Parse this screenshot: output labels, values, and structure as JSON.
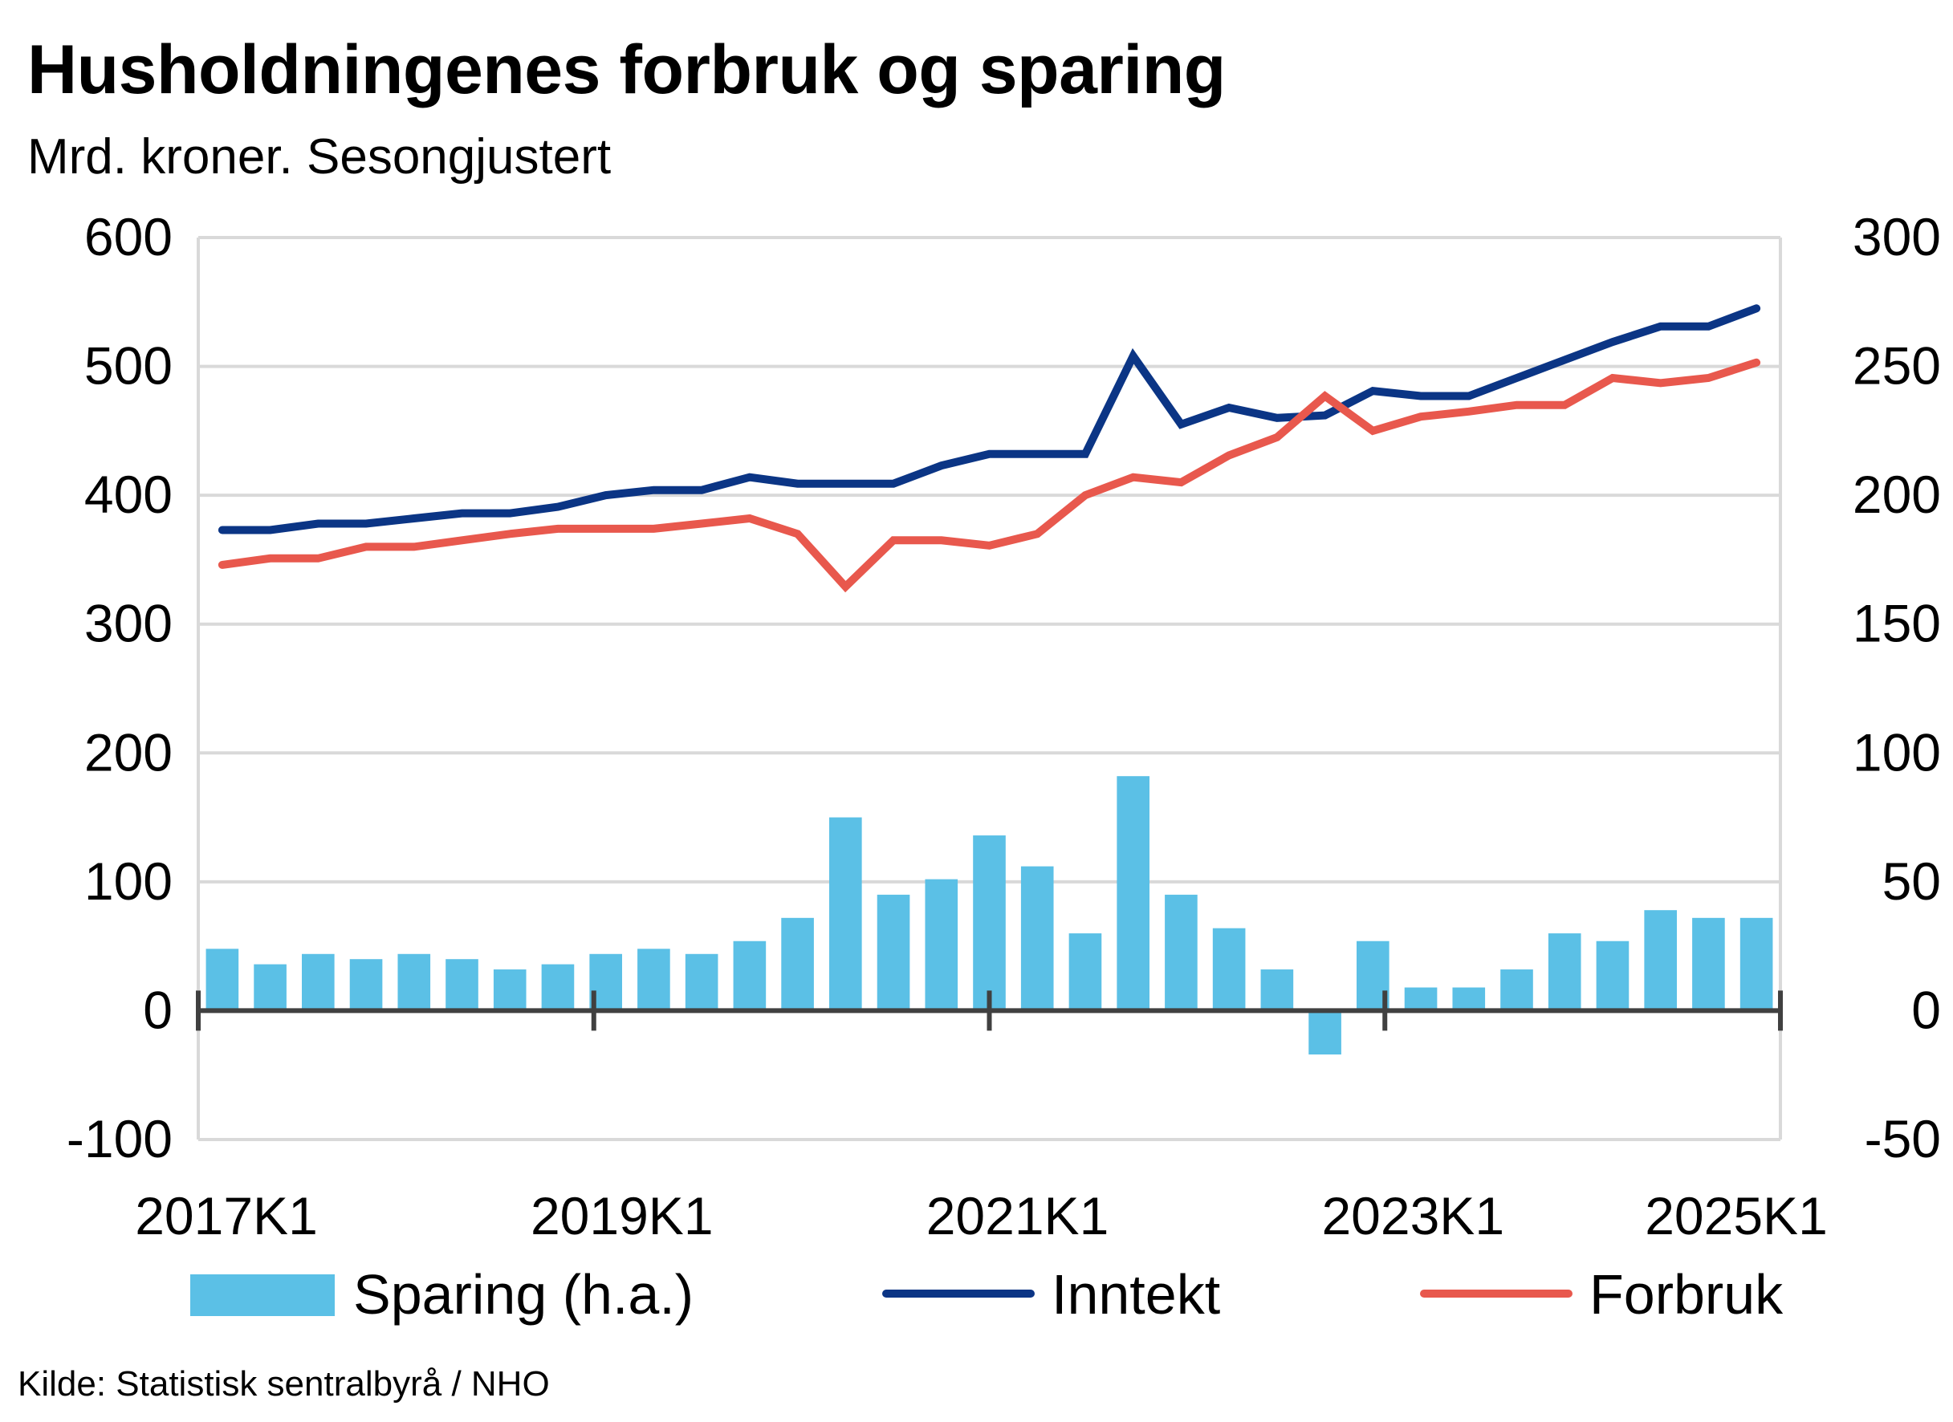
{
  "chart_data": {
    "type": "bar",
    "title": "Husholdningenes forbruk og sparing",
    "subtitle": "Mrd. kroner. Sesongjustert",
    "source": "Kilde: Statistisk sentralbyrå / NHO",
    "x": [
      "2017K1",
      "2017K2",
      "2017K3",
      "2017K4",
      "2018K1",
      "2018K2",
      "2018K3",
      "2018K4",
      "2019K1",
      "2019K2",
      "2019K3",
      "2019K4",
      "2020K1",
      "2020K2",
      "2020K3",
      "2020K4",
      "2021K1",
      "2021K2",
      "2021K3",
      "2021K4",
      "2022K1",
      "2022K2",
      "2022K3",
      "2022K4",
      "2023K1",
      "2023K2",
      "2023K3",
      "2023K4",
      "2024K1",
      "2024K2",
      "2024K3",
      "2024K4",
      "2025K1"
    ],
    "x_tick_labels": [
      "2017K1",
      "2019K1",
      "2021K1",
      "2023K1",
      "2025K1"
    ],
    "y_left": {
      "lim": [
        -100,
        600
      ],
      "ticks": [
        "-100",
        "0",
        "100",
        "200",
        "300",
        "400",
        "500",
        "600"
      ]
    },
    "y_right": {
      "lim": [
        -50,
        300
      ],
      "ticks": [
        "-50",
        "0",
        "50",
        "100",
        "150",
        "200",
        "250",
        "300"
      ]
    },
    "grid": true,
    "legend_position": "bottom",
    "series": [
      {
        "name": "Sparing (h.a.)",
        "type": "bar",
        "axis": "right",
        "color": "#5BC0E6",
        "values": [
          24,
          18,
          22,
          20,
          22,
          20,
          16,
          18,
          22,
          24,
          22,
          27,
          36,
          75,
          45,
          51,
          68,
          56,
          30,
          91,
          45,
          32,
          16,
          -17,
          27,
          9,
          9,
          16,
          30,
          27,
          39,
          36,
          36
        ]
      },
      {
        "name": "Inntekt",
        "type": "line",
        "axis": "left",
        "color": "#0B3585",
        "values": [
          373,
          373,
          378,
          378,
          382,
          386,
          386,
          391,
          400,
          404,
          404,
          414,
          409,
          409,
          409,
          423,
          432,
          432,
          432,
          508,
          455,
          468,
          460,
          462,
          481,
          477,
          477,
          491,
          505,
          519,
          531,
          531,
          545
        ]
      },
      {
        "name": "Forbruk",
        "type": "line",
        "axis": "left",
        "color": "#E8584D",
        "values": [
          346,
          351,
          351,
          360,
          360,
          365,
          370,
          374,
          374,
          374,
          378,
          382,
          370,
          329,
          365,
          365,
          361,
          370,
          400,
          414,
          410,
          431,
          445,
          477,
          450,
          461,
          465,
          470,
          470,
          491,
          487,
          491,
          503
        ]
      }
    ]
  }
}
